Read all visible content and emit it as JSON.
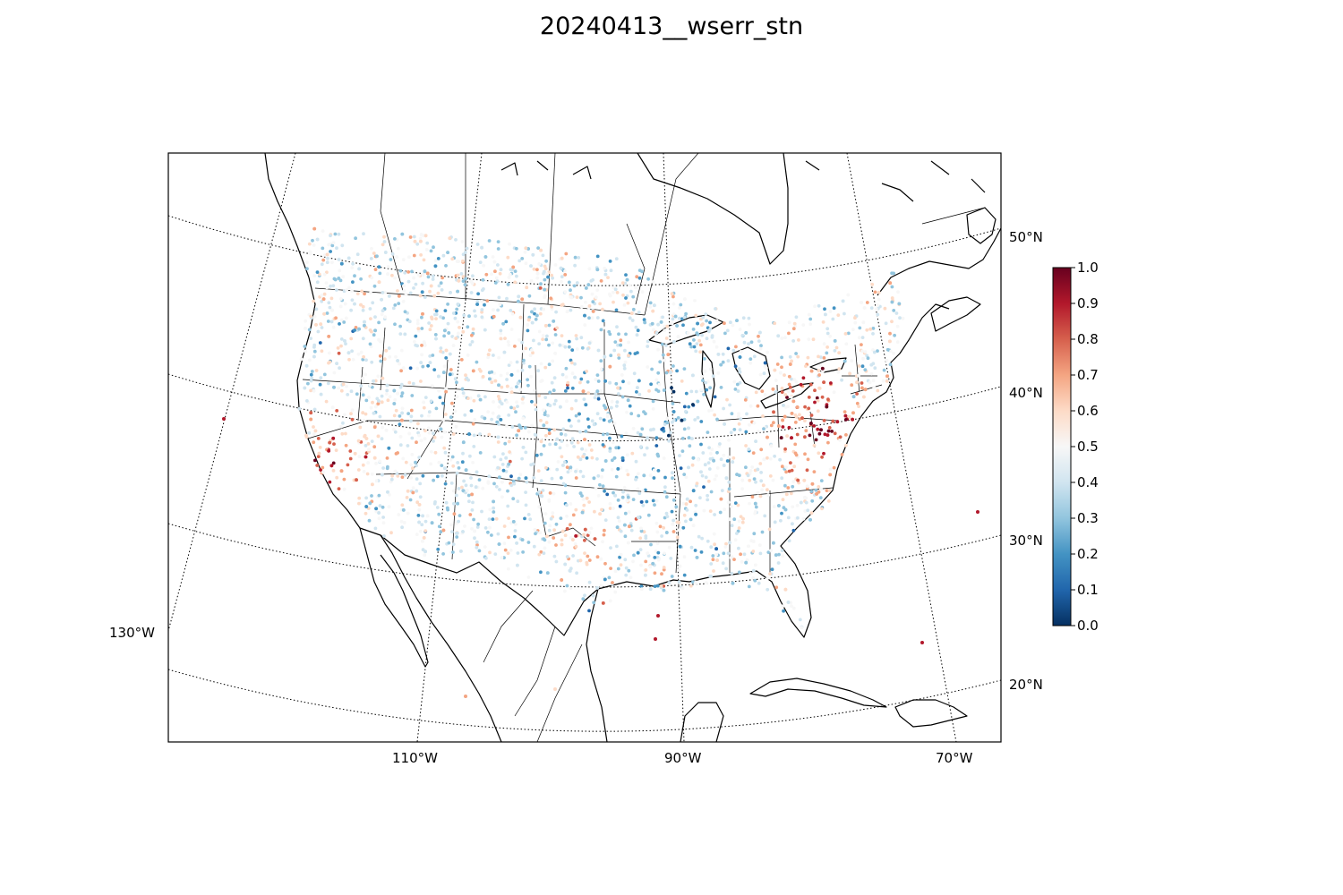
{
  "title": "20240413__wserr_stn",
  "map": {
    "projection": "lambert-conformal",
    "parallels": [
      {
        "label": "50°N"
      },
      {
        "label": "40°N"
      },
      {
        "label": "30°N"
      },
      {
        "label": "20°N"
      }
    ],
    "meridians": [
      {
        "label": "130°W"
      },
      {
        "label": "110°W"
      },
      {
        "label": "90°W"
      },
      {
        "label": "70°W"
      }
    ],
    "line_color": "#000000"
  },
  "colorbar": {
    "colormap": "RdBu_r",
    "range": [
      0.0,
      1.0
    ],
    "ticks": [
      "0.0",
      "0.1",
      "0.2",
      "0.3",
      "0.4",
      "0.5",
      "0.6",
      "0.7",
      "0.8",
      "0.9",
      "1.0"
    ],
    "colors": [
      "#053061",
      "#2166ac",
      "#4393c3",
      "#92c5de",
      "#d1e5f0",
      "#f7f7f7",
      "#fddbc7",
      "#f4a582",
      "#d6604d",
      "#b2182b",
      "#67001f"
    ]
  }
}
